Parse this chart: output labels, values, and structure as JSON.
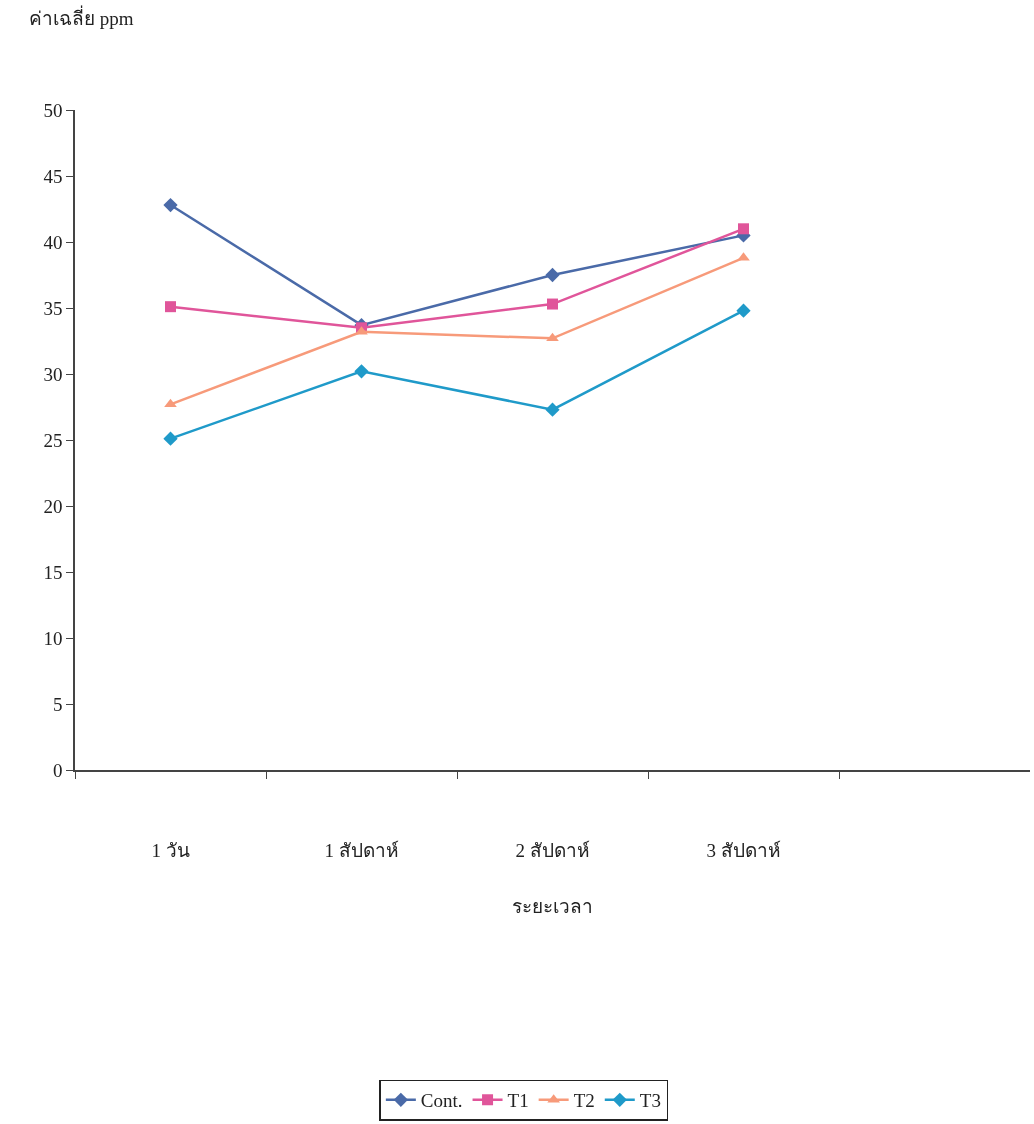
{
  "chart_data": {
    "type": "line",
    "xlabel": "ระยะเวลา",
    "ylabel": "ค่าเฉลี่ย ppm",
    "categories": [
      "1 วัน",
      "1 สัปดาห์",
      "2 สัปดาห์",
      "3 สัปดาห์",
      null
    ],
    "ylim": [
      0,
      50
    ],
    "yticks": [
      0,
      5,
      10,
      15,
      20,
      25,
      30,
      35,
      40,
      45,
      50
    ],
    "grid": false,
    "legend": "bottom",
    "line_style": "solid",
    "series": [
      {
        "name": "Cont.",
        "color": "#4a6aa8",
        "marker": "diamond",
        "values": [
          42.8,
          33.7,
          37.5,
          40.5,
          null
        ]
      },
      {
        "name": "T1",
        "color": "#e0559a",
        "marker": "square",
        "values": [
          35.1,
          33.5,
          35.3,
          41.0,
          null
        ]
      },
      {
        "name": "T2",
        "color": "#f79a7a",
        "marker": "triangle",
        "values": [
          27.7,
          33.2,
          32.7,
          38.8,
          null
        ]
      },
      {
        "name": "T3",
        "color": "#1f9ac9",
        "marker": "diamond",
        "values": [
          25.1,
          30.2,
          27.3,
          34.8,
          null
        ]
      }
    ]
  }
}
